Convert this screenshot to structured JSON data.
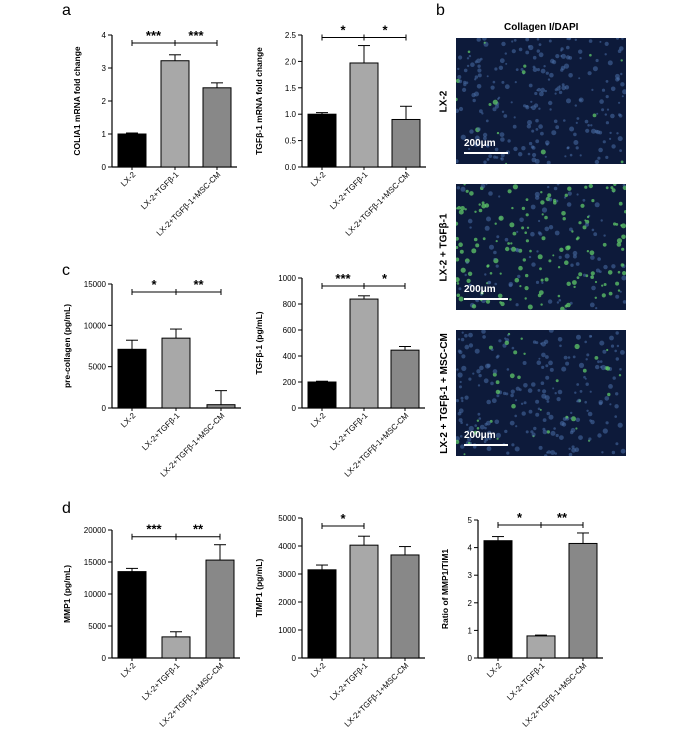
{
  "panel_letters": {
    "a": "a",
    "b": "b",
    "c": "c",
    "d": "d"
  },
  "microscopy": {
    "title": "Collagen I/DAPI",
    "rows": [
      {
        "label": "LX-2",
        "scale": "200μm",
        "green_level": 0.1
      },
      {
        "label": "LX-2 + TGFβ-1",
        "scale": "200μm",
        "green_level": 0.9
      },
      {
        "label": "LX-2 + TGFβ-1 + MSC-CM",
        "scale": "200μm",
        "green_level": 0.3
      }
    ]
  },
  "colors": {
    "black_bar": "#000000",
    "light_grey_bar": "#a8a8a8",
    "mid_grey_bar": "#888888"
  },
  "chart_data": [
    {
      "type": "bar",
      "panel": "a",
      "ylabel": "COLIA1 mRNA fold change",
      "categories": [
        "LX-2",
        "LX-2+TGFβ-1",
        "LX-2+TGFβ-1+MSC-CM"
      ],
      "values": [
        1.0,
        3.22,
        2.4
      ],
      "errors": [
        0.03,
        0.18,
        0.15
      ],
      "ylim": [
        0,
        4
      ],
      "yticks": [
        "0",
        "1",
        "2",
        "3",
        "4"
      ],
      "significance": [
        {
          "from": 0,
          "to": 1,
          "label": "***"
        },
        {
          "from": 1,
          "to": 2,
          "label": "***"
        }
      ]
    },
    {
      "type": "bar",
      "panel": "a",
      "ylabel": "TGFβ-1 mRNA fold change",
      "categories": [
        "LX-2",
        "LX-2+TGFβ-1",
        "LX-2+TGFβ-1+MSC-CM"
      ],
      "values": [
        1.0,
        1.97,
        0.9
      ],
      "errors": [
        0.03,
        0.33,
        0.25
      ],
      "ylim": [
        0,
        2.5
      ],
      "yticks": [
        "0.0",
        "0.5",
        "1.0",
        "1.5",
        "2.0",
        "2.5"
      ],
      "significance": [
        {
          "from": 0,
          "to": 1,
          "label": "*"
        },
        {
          "from": 1,
          "to": 2,
          "label": "*"
        }
      ]
    },
    {
      "type": "bar",
      "panel": "c",
      "ylabel": "pre-collagen (pg/mL)",
      "categories": [
        "LX-2",
        "LX-2+TGFβ-1",
        "LX-2+TGFβ-1+MSC-CM"
      ],
      "values": [
        7100,
        8450,
        400
      ],
      "errors": [
        1100,
        1100,
        1700
      ],
      "ylim": [
        0,
        15000
      ],
      "yticks": [
        "0",
        "5000",
        "10000",
        "15000"
      ],
      "significance": [
        {
          "from": 0,
          "to": 1,
          "label": "*"
        },
        {
          "from": 1,
          "to": 2,
          "label": "**"
        }
      ]
    },
    {
      "type": "bar",
      "panel": "c",
      "ylabel": "TGFβ-1 (pg/mL)",
      "categories": [
        "LX-2",
        "LX-2+TGFβ-1",
        "LX-2+TGFβ-1+MSC-CM"
      ],
      "values": [
        200,
        838,
        445
      ],
      "errors": [
        6,
        25,
        28
      ],
      "ylim": [
        0,
        1000
      ],
      "yticks": [
        "0",
        "200",
        "400",
        "600",
        "800",
        "1000"
      ],
      "significance": [
        {
          "from": 0,
          "to": 1,
          "label": "***"
        },
        {
          "from": 1,
          "to": 2,
          "label": "*"
        }
      ]
    },
    {
      "type": "bar",
      "panel": "d",
      "ylabel": "MMP1 (pg/mL)",
      "categories": [
        "LX-2",
        "LX-2+TGFβ-1",
        "LX-2+TGFβ-1+MSC-CM"
      ],
      "values": [
        13500,
        3300,
        15300
      ],
      "errors": [
        500,
        800,
        2400
      ],
      "ylim": [
        0,
        20000
      ],
      "yticks": [
        "0",
        "5000",
        "10000",
        "15000",
        "20000"
      ],
      "significance": [
        {
          "from": 0,
          "to": 1,
          "label": "***"
        },
        {
          "from": 1,
          "to": 2,
          "label": "**"
        }
      ]
    },
    {
      "type": "bar",
      "panel": "d",
      "ylabel": "TIMP1 (pg/mL)",
      "categories": [
        "LX-2",
        "LX-2+TGFβ-1",
        "LX-2+TGFβ-1+MSC-CM"
      ],
      "values": [
        3150,
        4030,
        3680
      ],
      "errors": [
        170,
        320,
        300
      ],
      "ylim": [
        0,
        5000
      ],
      "yticks": [
        "0",
        "1000",
        "2000",
        "3000",
        "4000",
        "5000"
      ],
      "significance": [
        {
          "from": 0,
          "to": 1,
          "label": "*"
        }
      ]
    },
    {
      "type": "bar",
      "panel": "d",
      "ylabel": "Ratio of MMP1/TIM1",
      "categories": [
        "LX-2",
        "LX-2+TGFβ-1",
        "LX-2+TGFβ-1+MSC-CM"
      ],
      "values": [
        4.25,
        0.8,
        4.15
      ],
      "errors": [
        0.15,
        0.03,
        0.38
      ],
      "ylim": [
        0,
        5
      ],
      "yticks": [
        "0",
        "1",
        "2",
        "3",
        "4",
        "5"
      ],
      "significance": [
        {
          "from": 0,
          "to": 1,
          "label": "*"
        },
        {
          "from": 1,
          "to": 2,
          "label": "**"
        }
      ]
    }
  ]
}
